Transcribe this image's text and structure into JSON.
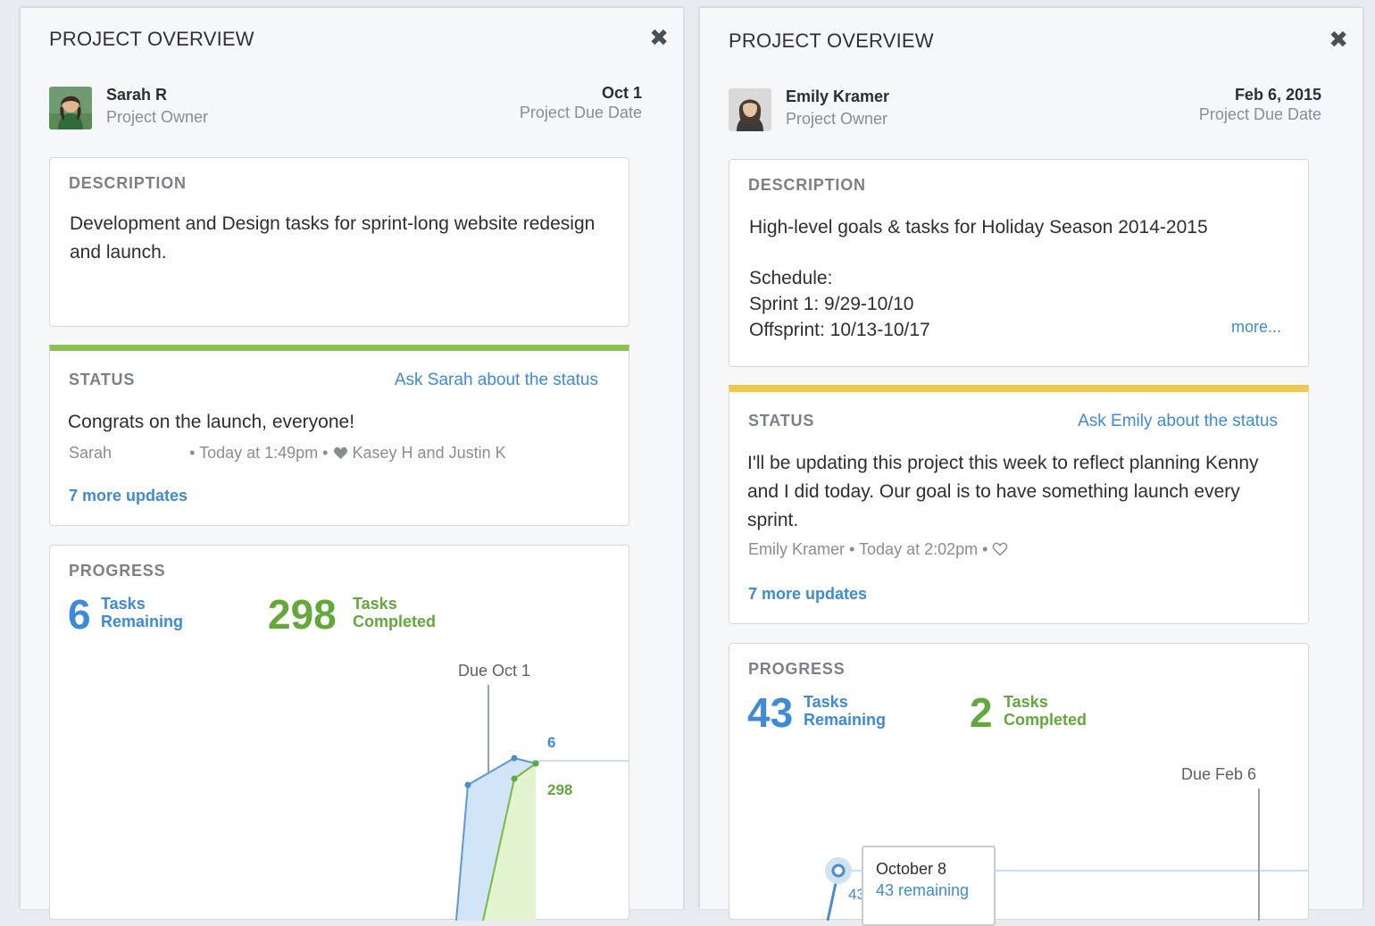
{
  "panels": [
    {
      "title": "PROJECT OVERVIEW",
      "close_icon": "close-icon",
      "owner": {
        "name": "Sarah R",
        "role": "Project Owner"
      },
      "due": {
        "date": "Oct 1",
        "label": "Project Due Date"
      },
      "description": {
        "heading": "DESCRIPTION",
        "text": "Development and Design tasks for sprint-long website redesign and launch."
      },
      "status": {
        "heading": "STATUS",
        "bar_color": "#8cc152",
        "ask_link": "Ask Sarah about the status",
        "message": "Congrats on the launch, everyone!",
        "author": "Sarah",
        "time": "Today at 1:49pm",
        "likes": "Kasey H and Justin K",
        "like_icon": "heart-filled-icon",
        "more_updates": "7 more updates"
      },
      "progress": {
        "heading": "PROGRESS",
        "remaining": {
          "value": "6",
          "label1": "Tasks",
          "label2": "Remaining"
        },
        "completed": {
          "value": "298",
          "label1": "Tasks",
          "label2": "Completed"
        },
        "due_marker": "Due Oct 1",
        "label_remaining": "6",
        "label_completed": "298"
      }
    },
    {
      "title": "PROJECT OVERVIEW",
      "close_icon": "close-icon",
      "owner": {
        "name": "Emily Kramer",
        "role": "Project Owner"
      },
      "due": {
        "date": "Feb 6, 2015",
        "label": "Project Due Date"
      },
      "description": {
        "heading": "DESCRIPTION",
        "text": "High-level goals & tasks for Holiday Season 2014-2015",
        "schedule_label": "Schedule:",
        "schedule_line1": "Sprint 1: 9/29-10/10",
        "schedule_line2": "Offsprint: 10/13-10/17",
        "more": "more..."
      },
      "status": {
        "heading": "STATUS",
        "bar_color": "#f0c94a",
        "ask_link": "Ask Emily about the status",
        "message": "I'll be updating this project this week to reflect planning Kenny and I did today. Our goal is to have something launch every sprint.",
        "author": "Emily Kramer",
        "time": "Today at 2:02pm",
        "like_icon": "heart-outline-icon",
        "more_updates": "7 more updates"
      },
      "progress": {
        "heading": "PROGRESS",
        "remaining": {
          "value": "43",
          "label1": "Tasks",
          "label2": "Remaining"
        },
        "completed": {
          "value": "2",
          "label1": "Tasks",
          "label2": "Completed"
        },
        "due_marker": "Due Feb 6",
        "tooltip": {
          "date": "October 8",
          "remaining": "43 remaining",
          "point_label": "43"
        }
      }
    }
  ]
}
